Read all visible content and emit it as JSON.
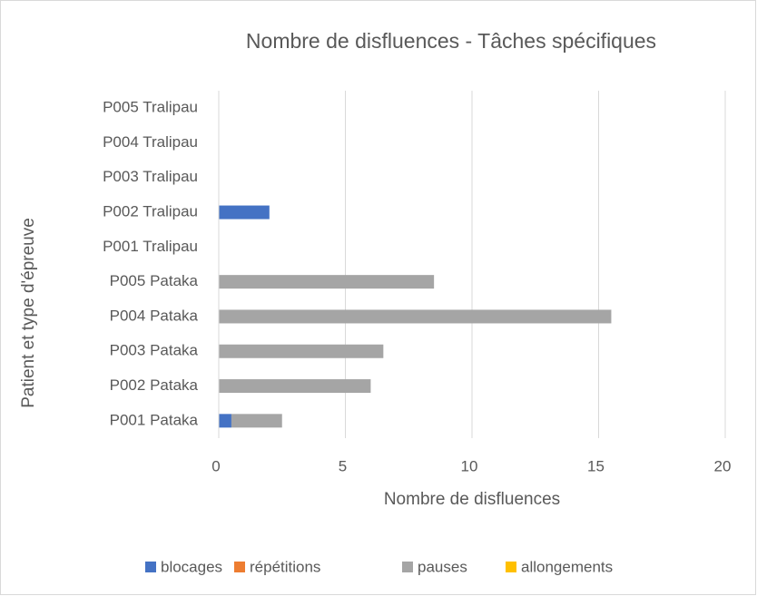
{
  "chart_data": {
    "type": "stacked-bar-horizontal",
    "title": "Nombre de disfluences - Tâches spécifiques",
    "x_label": "Nombre de disfluences",
    "y_label": "Patient et type d'épreuve",
    "categories": [
      "P001 Pataka",
      "P002 Pataka",
      "P003 Pataka",
      "P004 Pataka",
      "P005 Pataka",
      "P001 Tralipau",
      "P002 Tralipau",
      "P003 Tralipau",
      "P004 Tralipau",
      "P005 Tralipau"
    ],
    "series": [
      {
        "name": "blocages",
        "color": "#4472c4",
        "values": [
          0.5,
          0,
          0,
          0,
          0,
          0,
          2,
          0,
          0,
          0
        ]
      },
      {
        "name": "répétitions",
        "color": "#ed7d31",
        "values": [
          0,
          0,
          0,
          0,
          0,
          0,
          0,
          0,
          0,
          0
        ]
      },
      {
        "name": "pauses",
        "color": "#a5a5a5",
        "values": [
          2,
          6,
          6.5,
          15.5,
          8.5,
          0,
          0,
          0,
          0,
          0
        ]
      },
      {
        "name": "allongements",
        "color": "#ffc000",
        "values": [
          0,
          0,
          0,
          0,
          0,
          0,
          0,
          0,
          0,
          0
        ]
      }
    ],
    "xlim": [
      0,
      20
    ],
    "xticks": [
      0,
      5,
      10,
      15,
      20
    ],
    "grid": true,
    "legend": "bottom"
  }
}
